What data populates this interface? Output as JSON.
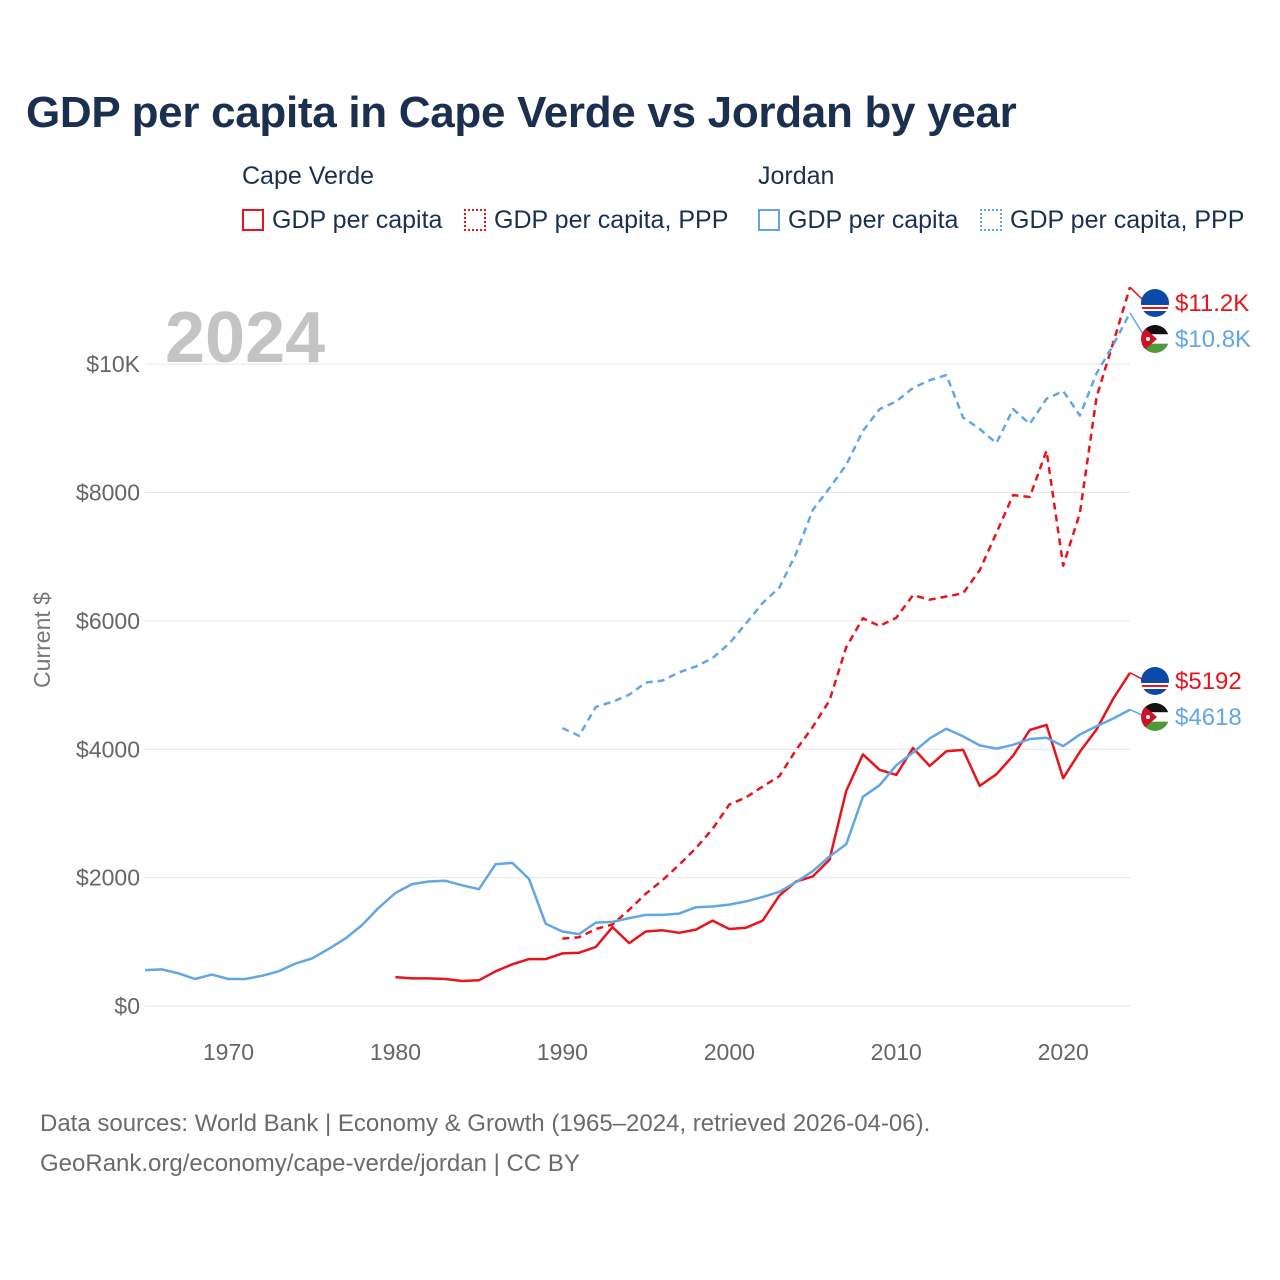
{
  "title": "GDP per capita in Cape Verde vs Jordan by year",
  "legend": {
    "groups": [
      {
        "name": "Cape Verde",
        "items": [
          "GDP per capita",
          "GDP per capita, PPP"
        ]
      },
      {
        "name": "Jordan",
        "items": [
          "GDP per capita",
          "GDP per capita, PPP"
        ]
      }
    ]
  },
  "colors": {
    "cape_verde": "#e8141c",
    "jordan": "#62a6e6",
    "axis_text": "#666666",
    "year_watermark": "#c4c4c4",
    "title": "#1b3050"
  },
  "chart_data": {
    "type": "line",
    "title": "GDP per capita in Cape Verde vs Jordan by year",
    "ylabel": "Current $",
    "xlabel": "",
    "xlim": [
      1965,
      2024
    ],
    "ylim": [
      0,
      11000
    ],
    "year_label": "2024",
    "x_ticks": [
      {
        "value": 1970,
        "label": "1970"
      },
      {
        "value": 1980,
        "label": "1980"
      },
      {
        "value": 1990,
        "label": "1990"
      },
      {
        "value": 2000,
        "label": "2000"
      },
      {
        "value": 2010,
        "label": "2010"
      },
      {
        "value": 2020,
        "label": "2020"
      }
    ],
    "y_ticks": [
      {
        "value": 0,
        "label": "$0"
      },
      {
        "value": 2000,
        "label": "$2000"
      },
      {
        "value": 4000,
        "label": "$4000"
      },
      {
        "value": 6000,
        "label": "$6000"
      },
      {
        "value": 8000,
        "label": "$8000"
      },
      {
        "value": 10000,
        "label": "$10K"
      }
    ],
    "series": [
      {
        "key": "cv-gdp",
        "country": "Cape Verde",
        "name": "GDP per capita",
        "color": "#e8141c",
        "dashed": false,
        "end_label": "$5192",
        "x": [
          1980,
          1981,
          1982,
          1983,
          1984,
          1985,
          1986,
          1987,
          1988,
          1989,
          1990,
          1991,
          1992,
          1993,
          1994,
          1995,
          1996,
          1997,
          1998,
          1999,
          2000,
          2001,
          2002,
          2003,
          2004,
          2005,
          2006,
          2007,
          2008,
          2009,
          2010,
          2011,
          2012,
          2013,
          2014,
          2015,
          2016,
          2017,
          2018,
          2019,
          2020,
          2021,
          2022,
          2023,
          2024
        ],
        "values": [
          450,
          430,
          430,
          420,
          390,
          400,
          540,
          650,
          730,
          730,
          820,
          830,
          920,
          1230,
          980,
          1160,
          1180,
          1140,
          1190,
          1330,
          1200,
          1220,
          1330,
          1720,
          1940,
          2020,
          2280,
          3350,
          3920,
          3680,
          3600,
          4020,
          3740,
          3970,
          3990,
          3430,
          3610,
          3900,
          4300,
          4380,
          3550,
          3960,
          4310,
          4790,
          5192
        ]
      },
      {
        "key": "cv-ppp",
        "country": "Cape Verde",
        "name": "GDP per capita, PPP",
        "color": "#e8141c",
        "dashed": true,
        "end_label": "$11.2K",
        "x": [
          1990,
          1991,
          1992,
          1993,
          1994,
          1995,
          1996,
          1997,
          1998,
          1999,
          2000,
          2001,
          2002,
          2003,
          2004,
          2005,
          2006,
          2007,
          2008,
          2009,
          2010,
          2011,
          2012,
          2013,
          2014,
          2015,
          2016,
          2017,
          2018,
          2019,
          2020,
          2021,
          2022,
          2023,
          2024
        ],
        "values": [
          1050,
          1070,
          1200,
          1270,
          1500,
          1750,
          1960,
          2200,
          2460,
          2760,
          3140,
          3250,
          3420,
          3580,
          3990,
          4350,
          4760,
          5590,
          6040,
          5920,
          6050,
          6400,
          6330,
          6380,
          6430,
          6790,
          7370,
          7960,
          7930,
          8650,
          6860,
          7680,
          9490,
          10340,
          11200
        ]
      },
      {
        "key": "jo-gdp",
        "country": "Jordan",
        "name": "GDP per capita",
        "color": "#62a6e6",
        "dashed": false,
        "end_label": "$4618",
        "x": [
          1965,
          1966,
          1967,
          1968,
          1969,
          1970,
          1971,
          1972,
          1973,
          1974,
          1975,
          1976,
          1977,
          1978,
          1979,
          1980,
          1981,
          1982,
          1983,
          1984,
          1985,
          1986,
          1987,
          1988,
          1989,
          1990,
          1991,
          1992,
          1993,
          1994,
          1995,
          1996,
          1997,
          1998,
          1999,
          2000,
          2001,
          2002,
          2003,
          2004,
          2005,
          2006,
          2007,
          2008,
          2009,
          2010,
          2011,
          2012,
          2013,
          2014,
          2015,
          2016,
          2017,
          2018,
          2019,
          2020,
          2021,
          2022,
          2023,
          2024
        ],
        "values": [
          560,
          570,
          510,
          420,
          490,
          420,
          420,
          470,
          540,
          660,
          740,
          890,
          1050,
          1260,
          1530,
          1760,
          1900,
          1940,
          1950,
          1880,
          1820,
          2210,
          2230,
          1980,
          1280,
          1160,
          1120,
          1300,
          1310,
          1370,
          1420,
          1420,
          1440,
          1540,
          1550,
          1580,
          1630,
          1700,
          1780,
          1930,
          2100,
          2330,
          2520,
          3260,
          3440,
          3750,
          3950,
          4170,
          4320,
          4200,
          4060,
          4010,
          4070,
          4160,
          4180,
          4050,
          4230,
          4360,
          4480,
          4618
        ]
      },
      {
        "key": "jo-ppp",
        "country": "Jordan",
        "name": "GDP per capita, PPP",
        "color": "#62a6e6",
        "dashed": true,
        "end_label": "$10.8K",
        "x": [
          1990,
          1991,
          1992,
          1993,
          1994,
          1995,
          1996,
          1997,
          1998,
          1999,
          2000,
          2001,
          2002,
          2003,
          2004,
          2005,
          2006,
          2007,
          2008,
          2009,
          2010,
          2011,
          2012,
          2013,
          2014,
          2015,
          2016,
          2017,
          2018,
          2019,
          2020,
          2021,
          2022,
          2023,
          2024
        ],
        "values": [
          4330,
          4210,
          4660,
          4740,
          4850,
          5040,
          5070,
          5200,
          5290,
          5420,
          5650,
          5960,
          6280,
          6520,
          7050,
          7730,
          8070,
          8430,
          8960,
          9300,
          9420,
          9630,
          9750,
          9830,
          9170,
          8990,
          8770,
          9300,
          9070,
          9460,
          9580,
          9200,
          9860,
          10300,
          10800
        ]
      }
    ]
  },
  "footer": {
    "line1": "Data sources: World Bank | Economy & Growth (1965–2024, retrieved 2026-04-06).",
    "line2": "GeoRank.org/economy/cape-verde/jordan | CC BY"
  }
}
